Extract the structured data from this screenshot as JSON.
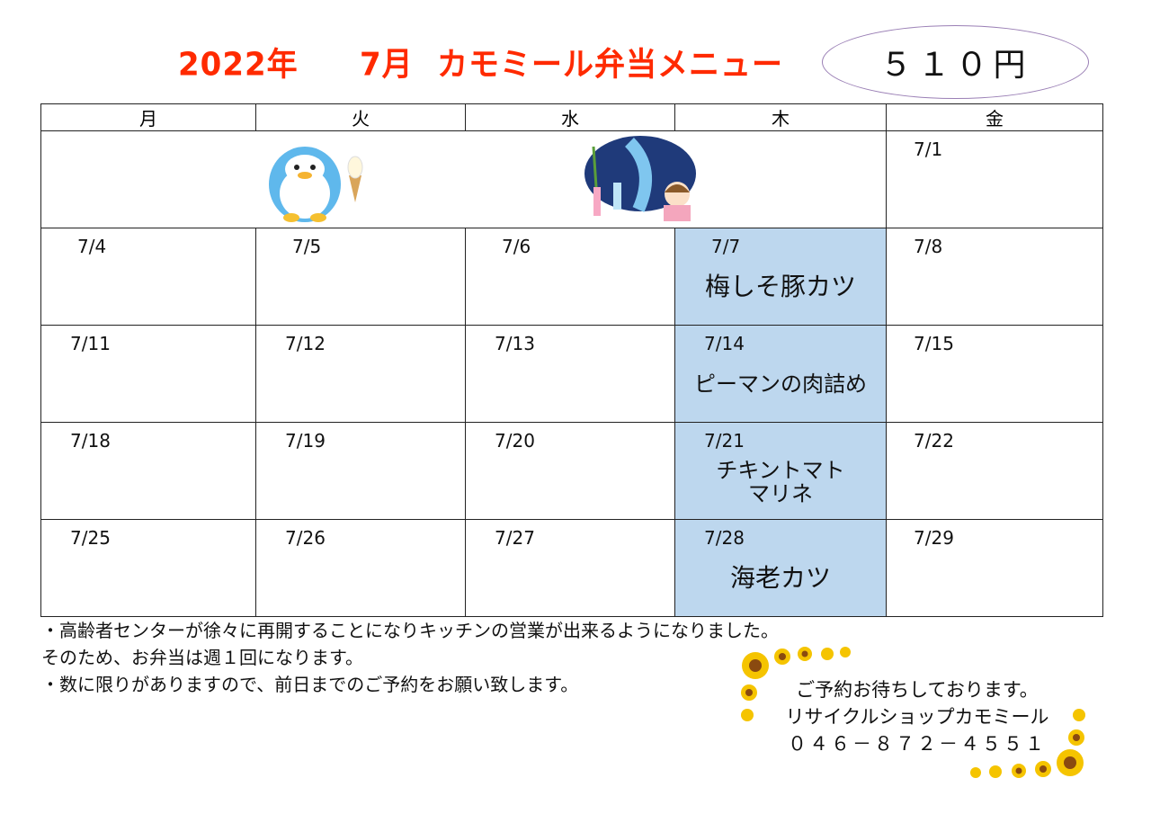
{
  "header": {
    "year": "2022年",
    "month": "7月",
    "title": "カモミール弁当メニュー",
    "price": "５１０円"
  },
  "weekdays": [
    "月",
    "火",
    "水",
    "木",
    "金"
  ],
  "weeks": [
    [
      {
        "date": ""
      },
      {
        "date": ""
      },
      {
        "date": ""
      },
      {
        "date": ""
      },
      {
        "date": "7/1"
      }
    ],
    [
      {
        "date": "7/4"
      },
      {
        "date": "7/5"
      },
      {
        "date": "7/6"
      },
      {
        "date": "7/7",
        "menu": "梅しそ豚カツ"
      },
      {
        "date": "7/8"
      }
    ],
    [
      {
        "date": "7/11"
      },
      {
        "date": "7/12"
      },
      {
        "date": "7/13"
      },
      {
        "date": "7/14",
        "menu": "ピーマンの肉詰め"
      },
      {
        "date": "7/15"
      }
    ],
    [
      {
        "date": "7/18"
      },
      {
        "date": "7/19"
      },
      {
        "date": "7/20"
      },
      {
        "date": "7/21",
        "menu": "チキントマト\nマリネ"
      },
      {
        "date": "7/22"
      }
    ],
    [
      {
        "date": "7/25"
      },
      {
        "date": "7/26"
      },
      {
        "date": "7/27"
      },
      {
        "date": "7/28",
        "menu": "海老カツ"
      },
      {
        "date": "7/29"
      }
    ]
  ],
  "notes": [
    "・高齢者センターが徐々に再開することになりキッチンの営業が出来るようになりました。",
    "そのため、お弁当は週１回になります。",
    "・数に限りがありますので、前日までのご予約をお願い致します。"
  ],
  "contact": {
    "line1": "ご予約お待ちしております。",
    "line2": "リサイクルショップカモミール",
    "phone": "０４６－８７２－４５５１"
  },
  "colors": {
    "title": "#ff2a00",
    "menu_highlight": "#bdd7ee",
    "price_border": "#9a7fb5"
  },
  "illustrations": [
    "penguin-with-ice-cream",
    "tanabata-girl-with-bamboo",
    "sunflower-corner-border"
  ]
}
